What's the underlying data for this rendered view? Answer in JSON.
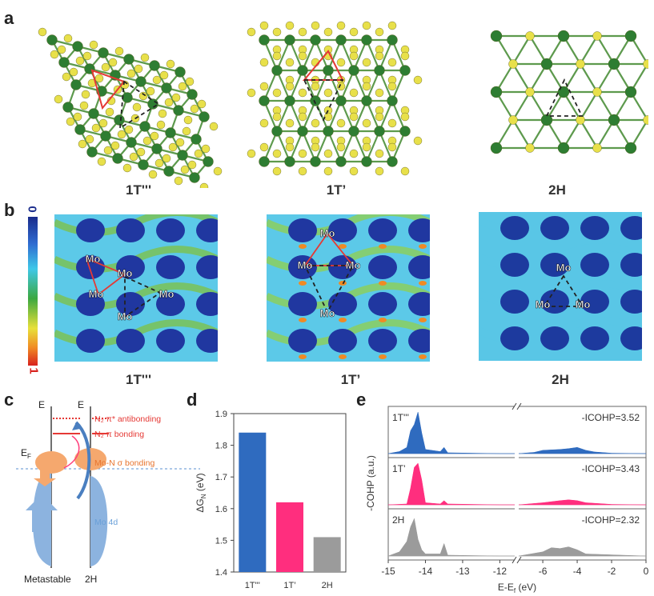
{
  "panel_a": {
    "letter": "a",
    "labels": [
      "1T'''",
      "1T’",
      "2H"
    ]
  },
  "panel_b": {
    "letter": "b",
    "colorbar_top": "0",
    "colorbar_bottom": "1",
    "labels": [
      "1T'''",
      "1T’",
      "2H"
    ],
    "mo_label": "Mo"
  },
  "panel_c": {
    "letter": "c",
    "axis_label": "E",
    "fermi_label": "E",
    "fermi_sub": "F",
    "states": [
      "N",
      "π* antibonding",
      "π bonding",
      "Mo-N σ bonding",
      "Mo 4d"
    ],
    "pi_star_label": "N₂ π* antibonding",
    "pi_label": "N₂ π bonding",
    "sigma_label": "Mo-N σ bonding",
    "mo4d_label": "Mo 4d",
    "x_labels": [
      "Metastable",
      "2H"
    ]
  },
  "panel_d": {
    "letter": "d",
    "ylabel_main": "ΔG",
    "ylabel_sub": "N",
    "ylabel_unit": "(eV)",
    "yticks": [
      "1.9",
      "1.8",
      "1.7",
      "1.6",
      "1.5",
      "1.4"
    ]
  },
  "panel_e": {
    "letter": "e",
    "ylabel": "-COHP (a.u.)",
    "xlabel": "E-E",
    "xlabel_sub": "f",
    "xlabel_unit": " (eV)",
    "xticks": [
      "-15",
      "-14",
      "-13",
      "-12",
      "-6",
      "-4",
      "-2",
      "0"
    ]
  },
  "colors": {
    "mo_atom": "#2e7d32",
    "s_atom": "#e8e04a",
    "red_bond": "#e53935",
    "bar_1t3": "#2f6bbf",
    "bar_1tp": "#ff2e7e",
    "bar_2h": "#9b9b9b",
    "orange": "#f5a86e",
    "blue_band": "#8cb3df"
  },
  "chart_data": [
    {
      "type": "bar",
      "categories": [
        "1T'''",
        "1T’",
        "2H"
      ],
      "values": [
        1.84,
        1.62,
        1.51
      ],
      "ylabel": "ΔGN (eV)",
      "ylim": [
        1.4,
        1.9
      ],
      "grid": false
    },
    {
      "type": "area",
      "xlabel": "E-Ef (eV)",
      "ylabel": "-COHP (a.u.)",
      "xlim": [
        -15,
        0
      ],
      "axis_break": [
        -11.6,
        -7.4
      ],
      "series": [
        {
          "name": "1T'''",
          "annotation": "-ICOHP=3.52",
          "x": [
            -15,
            -14.7,
            -14.5,
            -14.4,
            -14.3,
            -14.2,
            -14.1,
            -14.0,
            -13.6,
            -13.5,
            -13.4,
            -12.0,
            -7.4,
            -6.5,
            -6.0,
            -5.0,
            -4.5,
            -4.0,
            -3.5,
            -3.0,
            -2.0,
            0
          ],
          "y": [
            0,
            0.05,
            0.15,
            0.55,
            0.7,
            1.0,
            0.5,
            0.1,
            0.05,
            0.15,
            0.02,
            0,
            0,
            0.03,
            0.08,
            0.1,
            0.12,
            0.15,
            0.08,
            0.04,
            0.01,
            0
          ]
        },
        {
          "name": "1T’",
          "annotation": "-ICOHP=3.43",
          "x": [
            -15,
            -14.5,
            -14.4,
            -14.3,
            -14.2,
            -14.1,
            -14.0,
            -13.6,
            -13.5,
            -13.4,
            -12.0,
            -7.4,
            -6.0,
            -5.0,
            -4.5,
            -4.0,
            -3.5,
            -2.0,
            0
          ],
          "y": [
            0,
            0.02,
            0.4,
            0.9,
            1.0,
            0.6,
            0.05,
            0.02,
            0.1,
            0.02,
            0,
            0,
            0.05,
            0.1,
            0.12,
            0.1,
            0.05,
            0.01,
            0
          ]
        },
        {
          "name": "2H",
          "annotation": "-ICOHP=2.32",
          "x": [
            -15,
            -14.7,
            -14.5,
            -14.4,
            -14.3,
            -14.2,
            -14.1,
            -14.0,
            -13.6,
            -13.5,
            -13.4,
            -12.0,
            -7.4,
            -6.0,
            -5.5,
            -5.0,
            -4.5,
            -4.0,
            -3.5,
            0
          ],
          "y": [
            0,
            0.1,
            0.35,
            0.7,
            0.9,
            0.4,
            0.15,
            0.05,
            0.05,
            0.3,
            0.02,
            0,
            0,
            0.1,
            0.2,
            0.18,
            0.22,
            0.15,
            0.05,
            0
          ]
        }
      ]
    }
  ]
}
